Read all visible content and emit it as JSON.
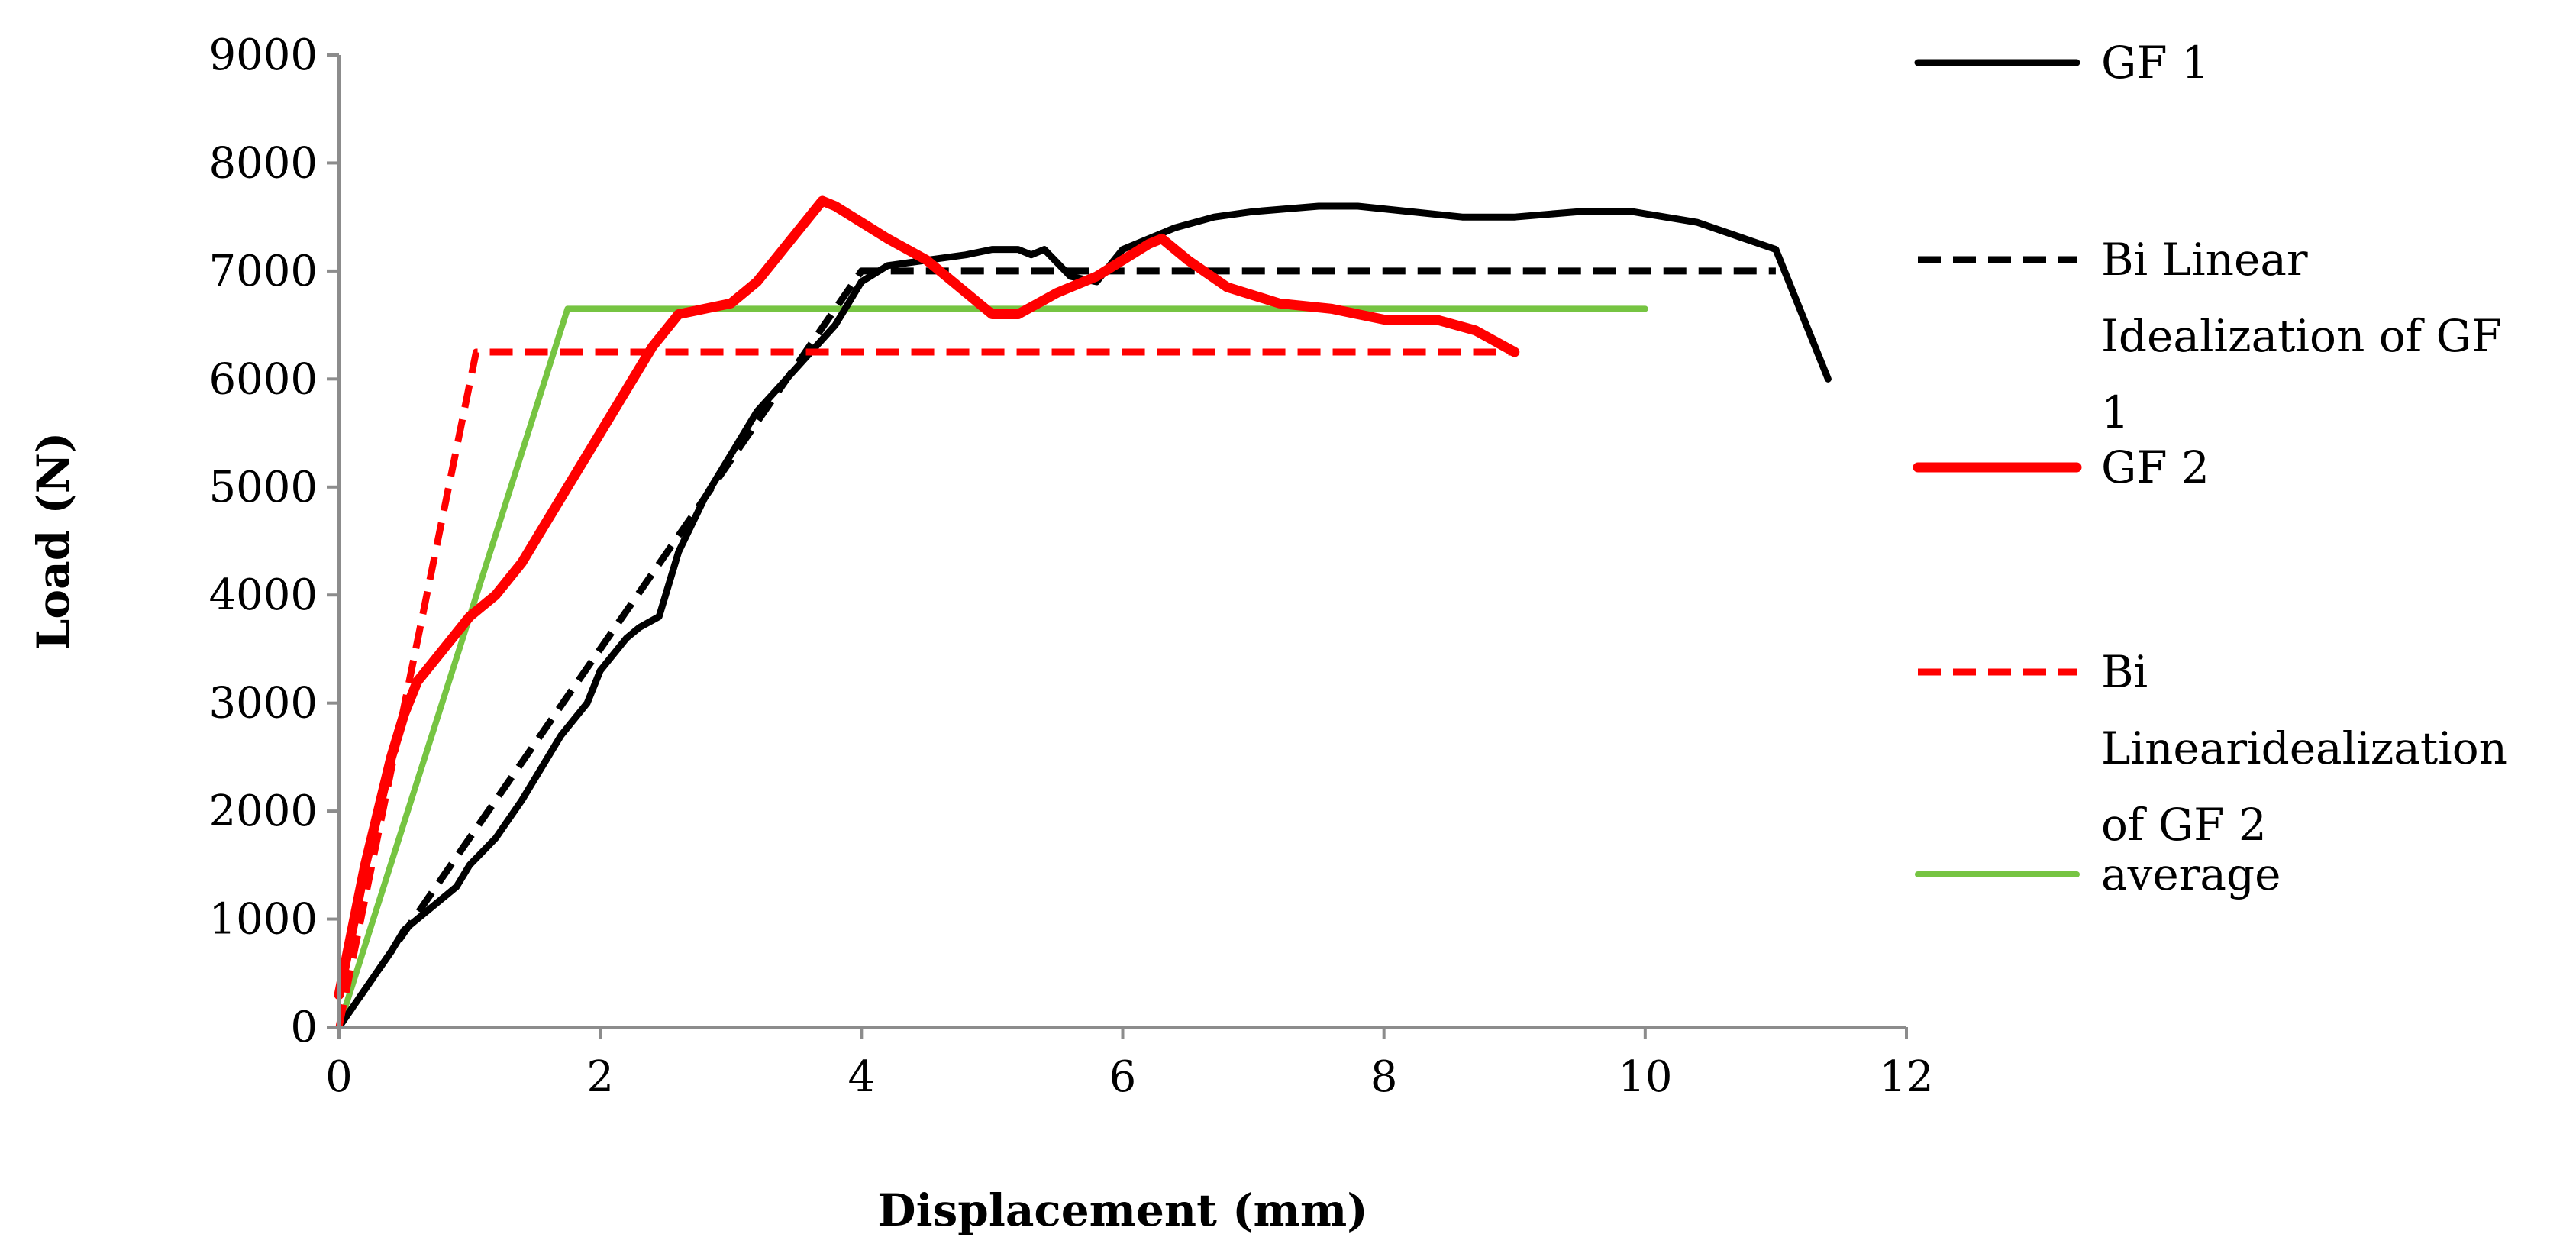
{
  "chart_data": {
    "type": "line",
    "title": "",
    "xlabel": "Displacement (mm)",
    "ylabel": "Load (N)",
    "xlim": [
      0,
      12
    ],
    "ylim": [
      0,
      9000
    ],
    "xticks": [
      0,
      2,
      4,
      6,
      8,
      10,
      12
    ],
    "yticks": [
      0,
      1000,
      2000,
      3000,
      4000,
      5000,
      6000,
      7000,
      8000,
      9000
    ],
    "grid": false,
    "legend_position": "right",
    "series": [
      {
        "name": "GF 1",
        "color": "#000000",
        "dash": "solid",
        "width": "thick",
        "x": [
          0,
          0.2,
          0.4,
          0.5,
          0.7,
          0.9,
          1.0,
          1.2,
          1.4,
          1.5,
          1.7,
          1.9,
          2.0,
          2.2,
          2.3,
          2.45,
          2.6,
          2.8,
          3.0,
          3.2,
          3.5,
          3.8,
          4.0,
          4.2,
          4.5,
          4.8,
          5.0,
          5.2,
          5.3,
          5.4,
          5.6,
          5.8,
          6.0,
          6.2,
          6.4,
          6.7,
          7.0,
          7.5,
          7.8,
          8.2,
          8.6,
          9.0,
          9.5,
          9.9,
          10.4,
          11.0,
          11.4
        ],
        "y": [
          0,
          350,
          700,
          900,
          1100,
          1300,
          1500,
          1750,
          2100,
          2300,
          2700,
          3000,
          3300,
          3600,
          3700,
          3800,
          4400,
          4900,
          5300,
          5700,
          6100,
          6500,
          6900,
          7050,
          7100,
          7150,
          7200,
          7200,
          7150,
          7200,
          6950,
          6900,
          7200,
          7300,
          7400,
          7500,
          7550,
          7600,
          7600,
          7550,
          7500,
          7500,
          7550,
          7550,
          7450,
          7200,
          6000
        ]
      },
      {
        "name": "Bi Linear Idealization of GF 1",
        "color": "#000000",
        "dash": "dashed",
        "width": "normal",
        "x": [
          0,
          4.0,
          11.0
        ],
        "y": [
          0,
          7000,
          7000
        ]
      },
      {
        "name": "GF 2",
        "color": "#ff0000",
        "dash": "solid",
        "width": "thick",
        "x": [
          0,
          0.1,
          0.2,
          0.3,
          0.4,
          0.5,
          0.6,
          0.7,
          0.8,
          0.9,
          1.0,
          1.2,
          1.4,
          1.6,
          1.8,
          2.0,
          2.2,
          2.4,
          2.6,
          2.8,
          3.0,
          3.2,
          3.4,
          3.6,
          3.7,
          3.8,
          4.0,
          4.2,
          4.5,
          4.8,
          5.0,
          5.2,
          5.5,
          5.8,
          6.0,
          6.2,
          6.3,
          6.5,
          6.8,
          7.2,
          7.6,
          8.0,
          8.4,
          8.7,
          9.0
        ],
        "y": [
          300,
          900,
          1500,
          2000,
          2500,
          2900,
          3200,
          3350,
          3500,
          3650,
          3800,
          4000,
          4300,
          4700,
          5100,
          5500,
          5900,
          6300,
          6600,
          6650,
          6700,
          6900,
          7200,
          7500,
          7650,
          7600,
          7450,
          7300,
          7100,
          6800,
          6600,
          6600,
          6800,
          6950,
          7100,
          7250,
          7300,
          7100,
          6850,
          6700,
          6650,
          6550,
          6550,
          6450,
          6250
        ]
      },
      {
        "name": "Bi Linearidealization of GF 2",
        "color": "#ff0000",
        "dash": "dashed",
        "width": "normal",
        "x": [
          0,
          1.05,
          9.0
        ],
        "y": [
          0,
          6250,
          6250
        ]
      },
      {
        "name": "average",
        "color": "#76c442",
        "dash": "solid",
        "width": "normal",
        "x": [
          0,
          1.75,
          10.0
        ],
        "y": [
          0,
          6650,
          6650
        ]
      }
    ],
    "legend": [
      {
        "series": 0,
        "lines": [
          "GF 1"
        ]
      },
      {
        "series": 1,
        "lines": [
          "Bi Linear",
          "Idealization of GF",
          "1"
        ]
      },
      {
        "series": 2,
        "lines": [
          "GF 2"
        ]
      },
      {
        "series": 3,
        "lines": [
          "Bi",
          "Linearidealization",
          "of GF 2"
        ]
      },
      {
        "series": 4,
        "lines": [
          "average"
        ]
      }
    ]
  }
}
